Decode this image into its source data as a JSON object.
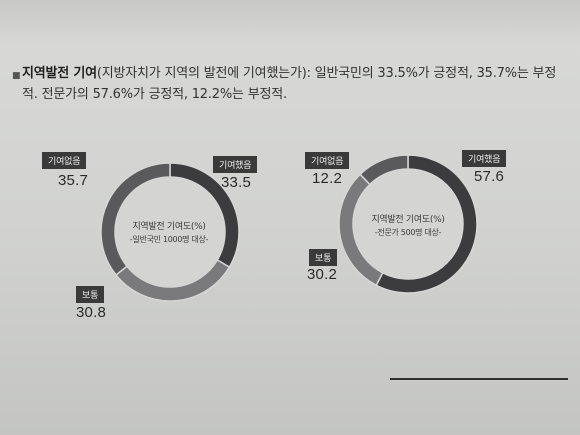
{
  "paragraph": {
    "heading": "지역발전 기여",
    "text": "(지방자치가 지역의 발전에 기여했는가): 일반국민의 33.5%가 긍정적, 35.7%는 부정적. 전문가의 57.6%가 긍정적, 12.2%는 부정적."
  },
  "chart_data": [
    {
      "type": "pie",
      "center_title": "지역발전 기여도(%)",
      "center_subtitle": "-일반국민 1000명 대상-",
      "slices": [
        {
          "label": "기여했음",
          "value": 33.5,
          "color": "#3c3c3e"
        },
        {
          "label": "보통",
          "value": 30.8,
          "color": "#7a7a7c"
        },
        {
          "label": "기여없음",
          "value": 35.7,
          "color": "#5a5a5c"
        }
      ],
      "value_labels": [
        "33.5",
        "30.8",
        "35.7"
      ]
    },
    {
      "type": "pie",
      "center_title": "지역발전 기여도(%)",
      "center_subtitle": "-전문가 500명 대상-",
      "slices": [
        {
          "label": "기여했음",
          "value": 57.6,
          "color": "#3c3c3e"
        },
        {
          "label": "보통",
          "value": 30.2,
          "color": "#7a7a7c"
        },
        {
          "label": "기여없음",
          "value": 12.2,
          "color": "#5a5a5c"
        }
      ],
      "value_labels": [
        "57.6",
        "30.2",
        "12.2"
      ]
    }
  ]
}
